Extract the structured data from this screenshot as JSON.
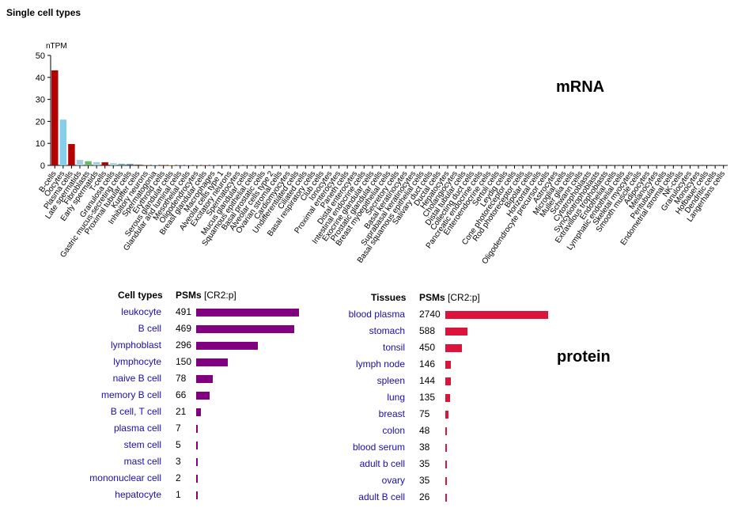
{
  "header": {
    "title": "Single cell types"
  },
  "labels": {
    "mrna": "mRNA",
    "protein": "protein"
  },
  "colors": {
    "purple": "#800080",
    "red": "#dc143c",
    "link": "#1a0dab"
  },
  "chart_data": {
    "type": "bar",
    "ylabel": "nTPM",
    "ylim": [
      0,
      50
    ],
    "yticks": [
      0,
      10,
      20,
      30,
      40,
      50
    ],
    "categories": [
      "B-cells",
      "Oocytes",
      "Plasma cells",
      "Late spermatids",
      "Fibroblasts",
      "Early spermatids",
      "T-cells",
      "Granulosa cells",
      "Gastric mucus-secreting cells",
      "Proximal tubular cells",
      "Kupffer cells",
      "Inhibitory neurons",
      "Spermatogonia",
      "Erythroid cells",
      "Serous glandular cells",
      "Glandular and luminal cells",
      "Mesothelial cells",
      "Oligodendrocytes",
      "Breast glandular cells",
      "Macrophages",
      "Alveolar cells type 1",
      "Excitatory neurons",
      "Spermatocytes",
      "Mucus glandular cells",
      "Squamous epithelial cells",
      "Basal prostatic cells",
      "Alveolar cells type 2",
      "Ovarian stromal cells",
      "Cardiomyocytes",
      "Undifferentiated cells",
      "Ciliated cells",
      "Basal respiratory cells",
      "Club cells",
      "Ionocytes",
      "Proximal enterocytes",
      "Paneth cells",
      "Distal enterocytes",
      "Intestinal endocrine cells",
      "Exocrine glandular cells",
      "Prostatic glandular cells",
      "Breast myoepithelial cells",
      "Secretory cells",
      "Basal keratinocytes",
      "Suprabasal keratinocytes",
      "Basal squamous epithelial cells",
      "Salivary duct cells",
      "Ductal cells",
      "Hepatocytes",
      "Cholangiocytes",
      "Distal tubular cells",
      "Collecting duct cells",
      "Pancreatic endocrine cells",
      "Enteroendocrine cells",
      "Sertoli cells",
      "Leydig cells",
      "Cone photoreceptor cells",
      "Rod photoreceptor cells",
      "Bipolar cells",
      "Horizontal cells",
      "Oligodendrocyte precursor cells",
      "Astrocytes",
      "Microglial cells",
      "Muller glia cells",
      "Schwann cells",
      "Cytotrophoblasts",
      "Syncytiotrophoblasts",
      "Extravillous trophoblasts",
      "Endothelial cells",
      "Lymphatic endothelial cells",
      "Skeletal myocytes",
      "Smooth muscle cells",
      "Adipocytes",
      "Melanocytes",
      "Peritubular cells",
      "Endometrial stromal cells",
      "NK-cells",
      "Granulocytes",
      "Monocytes",
      "Hofbauer cells",
      "Dendritic cells",
      "Langerhans cells"
    ],
    "values": [
      43.2,
      20.8,
      9.7,
      2.5,
      1.9,
      1.5,
      1.4,
      1.0,
      0.7,
      0.6,
      0.4,
      0.35,
      0.3,
      0.25,
      0.22,
      0.2,
      0.18,
      0.15,
      0.2,
      0.15,
      0.1,
      0.1,
      0.1,
      0.1,
      0.1,
      0.05,
      0.05,
      0.05,
      0.05,
      0.05,
      0.05,
      0.05,
      0.05,
      0.05,
      0.05,
      0.05,
      0.05,
      0.05,
      0.05,
      0.05,
      0.05,
      0.05,
      0.05,
      0.05,
      0.05,
      0.05,
      0.05,
      0.05,
      0.05,
      0.05,
      0.05,
      0.05,
      0.05,
      0.05,
      0.05,
      0.05,
      0.05,
      0.05,
      0.05,
      0.05,
      0.05,
      0.05,
      0.05,
      0.05,
      0.05,
      0.05,
      0.05,
      0.05,
      0.05,
      0.05,
      0.05,
      0.05,
      0.05,
      0.05,
      0.05,
      0.05,
      0.05,
      0.05,
      0.05,
      0.05,
      0.05
    ],
    "bar_colors": [
      "#b30000",
      "#87ceeb",
      "#b30000",
      "#a6cee3",
      "#66bb6a",
      "#a6cee3",
      "#b30000",
      "#a6cee3",
      "#6a9fb5",
      "#4f6ea6",
      "#7f6b4f",
      "#cdb48a",
      "#a6cee3",
      "#c46a4a",
      "#d4c15c",
      "#7c8fb0",
      "#8fa0b6",
      "#c9b26a",
      "#d07a7a",
      "#a6a6cf",
      "#c08060",
      "#cdb48a",
      "#a6cee3",
      "#a6cee3",
      "#a6cee3",
      "#a6cee3",
      "#a6cee3",
      "#a6cee3",
      "#a6cee3",
      "#a6cee3",
      "#a6cee3",
      "#a6cee3",
      "#a6cee3",
      "#a6cee3",
      "#a6cee3",
      "#a6cee3",
      "#a6cee3",
      "#a6cee3",
      "#a6cee3",
      "#a6cee3",
      "#a6cee3",
      "#a6cee3",
      "#a6cee3",
      "#a6cee3",
      "#a6cee3",
      "#a6cee3",
      "#a6cee3",
      "#a6cee3",
      "#a6cee3",
      "#a6cee3",
      "#a6cee3",
      "#a6cee3",
      "#a6cee3",
      "#a6cee3",
      "#a6cee3",
      "#a6cee3",
      "#a6cee3",
      "#a6cee3",
      "#a6cee3",
      "#a6cee3",
      "#a6cee3",
      "#a6cee3",
      "#a6cee3",
      "#a6cee3",
      "#a6cee3",
      "#a6cee3",
      "#a6cee3",
      "#a6cee3",
      "#a6cee3",
      "#a6cee3",
      "#a6cee3",
      "#a6cee3",
      "#a6cee3",
      "#a6cee3",
      "#a6cee3",
      "#a6cee3",
      "#a6cee3",
      "#a6cee3",
      "#a6cee3",
      "#a6cee3",
      "#a6cee3"
    ]
  },
  "cell_types_table": {
    "header_name": "Cell types",
    "header_value": "PSMs",
    "header_unit": "[CR2:p]",
    "max": 491,
    "rows": [
      {
        "name": "leukocyte",
        "value": 491
      },
      {
        "name": "B cell",
        "value": 469
      },
      {
        "name": "lymphoblast",
        "value": 296
      },
      {
        "name": "lymphocyte",
        "value": 150
      },
      {
        "name": "naive B cell",
        "value": 78
      },
      {
        "name": "memory B cell",
        "value": 66
      },
      {
        "name": "B cell, T cell",
        "value": 21
      },
      {
        "name": "plasma cell",
        "value": 7
      },
      {
        "name": "stem cell",
        "value": 5
      },
      {
        "name": "mast cell",
        "value": 3
      },
      {
        "name": "mononuclear cell",
        "value": 2
      },
      {
        "name": "hepatocyte",
        "value": 1
      }
    ]
  },
  "tissues_table": {
    "header_name": "Tissues",
    "header_value": "PSMs",
    "header_unit": "[CR2:p]",
    "max": 2740,
    "rows": [
      {
        "name": "blood plasma",
        "value": 2740
      },
      {
        "name": "stomach",
        "value": 588
      },
      {
        "name": "tonsil",
        "value": 450
      },
      {
        "name": "lymph node",
        "value": 146
      },
      {
        "name": "spleen",
        "value": 144
      },
      {
        "name": "lung",
        "value": 135
      },
      {
        "name": "breast",
        "value": 75
      },
      {
        "name": "colon",
        "value": 48
      },
      {
        "name": "blood serum",
        "value": 38
      },
      {
        "name": "adult b cell",
        "value": 35
      },
      {
        "name": "ovary",
        "value": 35
      },
      {
        "name": "adult B cell",
        "value": 26
      }
    ]
  }
}
